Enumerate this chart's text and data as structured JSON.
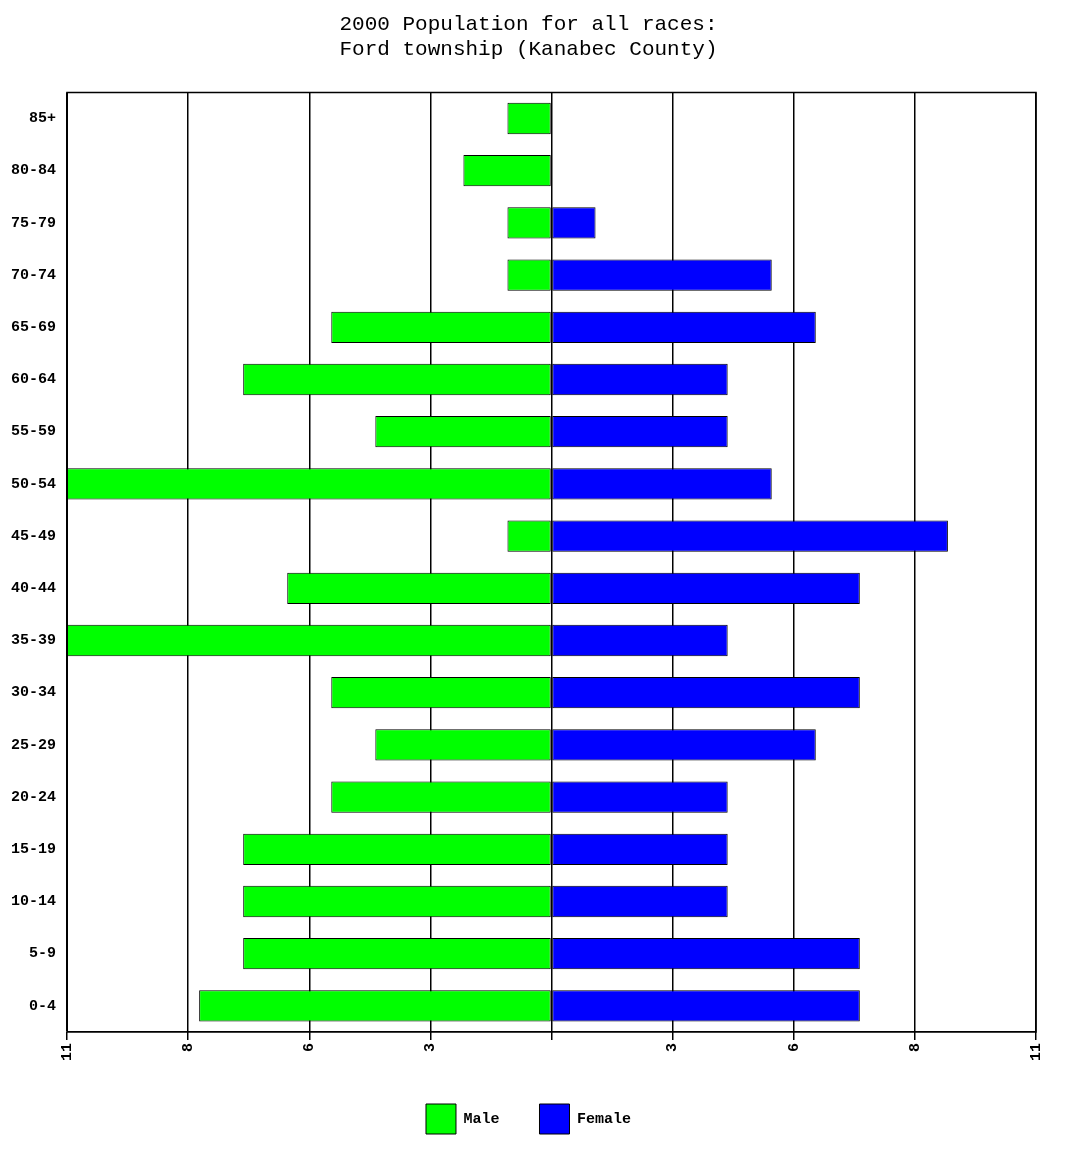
{
  "chart_data": {
    "type": "bar",
    "orientation": "horizontal",
    "title": "2000 Population for all races:\nFord township (Kanabec County)",
    "categories": [
      "85+",
      "80-84",
      "75-79",
      "70-74",
      "65-69",
      "60-64",
      "55-59",
      "50-54",
      "45-49",
      "40-44",
      "35-39",
      "30-34",
      "25-29",
      "20-24",
      "15-19",
      "10-14",
      "5-9",
      "0-4"
    ],
    "series": [
      {
        "name": "Male",
        "color": "#00ff00",
        "values": [
          -1,
          -2,
          -1,
          -1,
          -5,
          -7,
          -4,
          -11,
          -1,
          -6,
          -11,
          -5,
          -4,
          -5,
          -7,
          -7,
          -7,
          -8
        ]
      },
      {
        "name": "Female",
        "color": "#0000ff",
        "values": [
          0,
          0,
          1,
          5,
          6,
          4,
          4,
          5,
          9,
          7,
          4,
          7,
          6,
          4,
          4,
          4,
          7,
          7
        ]
      }
    ],
    "xlim": [
      -11,
      11
    ],
    "xticks": [
      {
        "value": -11,
        "label": "11"
      },
      {
        "value": -8.25,
        "label": "8"
      },
      {
        "value": -5.5,
        "label": "6"
      },
      {
        "value": -2.75,
        "label": "3"
      },
      {
        "value": 0,
        "label": null
      },
      {
        "value": 2.75,
        "label": "3"
      },
      {
        "value": 5.5,
        "label": "6"
      },
      {
        "value": 8.25,
        "label": "8"
      },
      {
        "value": 11,
        "label": "11"
      }
    ],
    "grid": "x",
    "legend": "bottom",
    "stacked": true
  }
}
